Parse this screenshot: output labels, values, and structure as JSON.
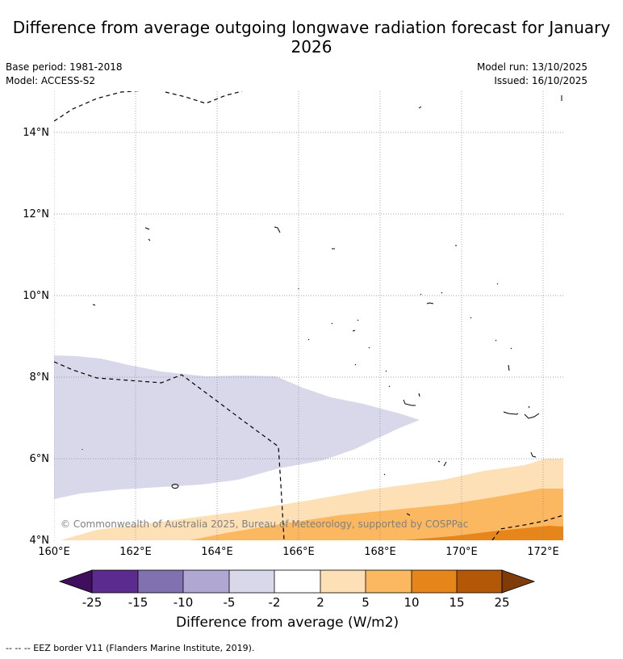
{
  "title": "Difference from average outgoing longwave radiation forecast for January 2026",
  "meta": {
    "base_period": "Base period: 1981-2018",
    "model": "Model: ACCESS-S2",
    "model_run": "Model run: 13/10/2025",
    "issued": "Issued: 16/10/2025"
  },
  "map": {
    "lon_range": [
      160,
      172.5
    ],
    "lat_range": [
      4,
      15
    ],
    "lon_ticks": [
      "160°E",
      "162°E",
      "164°E",
      "166°E",
      "168°E",
      "170°E",
      "172°E"
    ],
    "lat_ticks": [
      "4°N",
      "6°N",
      "8°N",
      "10°N",
      "12°N",
      "14°N"
    ],
    "copyright": "© Commonwealth of Australia 2025, Bureau of Meteorology, supported by COSPPac",
    "colors": {
      "neg2_neg5": "#d8d8ea",
      "pos2_5": "#fde0b5",
      "pos5_10": "#fbb860",
      "pos10_15": "#e5851a",
      "border": "#000000",
      "grid": "#888888"
    }
  },
  "colorbar": {
    "label": "Difference from average (W/m2)",
    "ticks": [
      "-25",
      "-15",
      "-10",
      "-5",
      "-2",
      "2",
      "5",
      "10",
      "15",
      "25"
    ],
    "colors": [
      "#3f0f5e",
      "#5c2b8f",
      "#8271b0",
      "#b0a7d2",
      "#d8d8ea",
      "#ffffff",
      "#fde0b5",
      "#fbb860",
      "#e5851a",
      "#b35806",
      "#7f3b08"
    ]
  },
  "footer": "--  --  -- EEZ border V11 (Flanders Marine Institute, 2019)."
}
